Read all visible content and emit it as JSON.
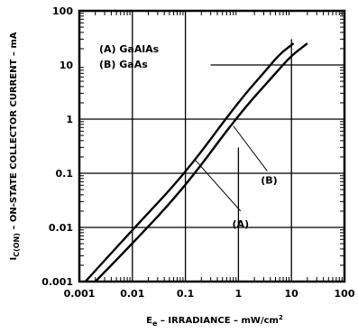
{
  "chart_data": {
    "type": "line",
    "title": "",
    "xlabel": "Ee – IRRADIANCE – mW/cm²",
    "xlabel_parts": {
      "main": "E",
      "sub": "e",
      "rest": " – IRRADIANCE – mW/cm",
      "sup": "2"
    },
    "ylabel": "IC(ON) – ON-STATE COLLECTOR CURRENT – mA",
    "ylabel_parts": {
      "main": "I",
      "sub": "C(ON)",
      "rest": " – ON-STATE COLLECTOR CURRENT – mA"
    },
    "x_scale": "log",
    "y_scale": "log",
    "xlim": [
      0.001,
      100
    ],
    "ylim": [
      0.001,
      100
    ],
    "x_ticks": [
      0.001,
      0.01,
      0.1,
      1,
      10,
      100
    ],
    "x_tick_labels": [
      "0.001",
      "0.01",
      "0.1",
      "1",
      "10",
      "100"
    ],
    "y_ticks": [
      0.001,
      0.01,
      0.1,
      1,
      10,
      100
    ],
    "y_tick_labels": [
      "0.001",
      "0.01",
      "0.1",
      "1",
      "10",
      "100"
    ],
    "grid": true,
    "legend_position": "top-left",
    "legend": [
      "(A) GaAlAs",
      "(B) GaAs"
    ],
    "series": [
      {
        "name": "(A) GaAlAs",
        "callout": "(A)",
        "x": [
          0.0013,
          0.01,
          0.1,
          1,
          3.5,
          6,
          11
        ],
        "y": [
          0.001,
          0.009,
          0.1,
          2.1,
          8.5,
          16,
          25
        ]
      },
      {
        "name": "(B) GaAs",
        "callout": "(B)",
        "x": [
          0.002,
          0.01,
          0.1,
          1,
          5,
          10,
          20
        ],
        "y": [
          0.001,
          0.005,
          0.057,
          1.2,
          7,
          15,
          25
        ]
      }
    ]
  }
}
